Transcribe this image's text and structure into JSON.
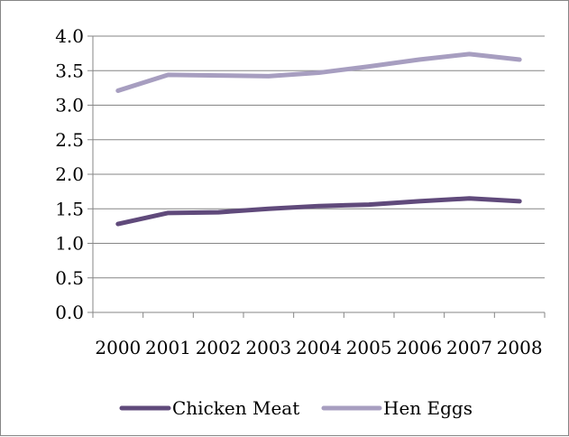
{
  "chart_data": {
    "type": "line",
    "categories": [
      "2000",
      "2001",
      "2002",
      "2003",
      "2004",
      "2005",
      "2006",
      "2007",
      "2008"
    ],
    "series": [
      {
        "name": "Chicken Meat",
        "color": "#604a7b",
        "values": [
          1.28,
          1.44,
          1.45,
          1.5,
          1.54,
          1.56,
          1.61,
          1.65,
          1.61
        ]
      },
      {
        "name": "Hen Eggs",
        "color": "#a79ec0",
        "values": [
          3.21,
          3.44,
          3.43,
          3.42,
          3.47,
          3.56,
          3.66,
          3.74,
          3.66
        ]
      }
    ],
    "y_ticks": [
      "0.0",
      "0.5",
      "1.0",
      "1.5",
      "2.0",
      "2.5",
      "3.0",
      "3.5",
      "4.0"
    ],
    "ylim": [
      0,
      4
    ],
    "grid": true,
    "legend_position": "bottom",
    "title": "",
    "xlabel": "",
    "ylabel": ""
  }
}
